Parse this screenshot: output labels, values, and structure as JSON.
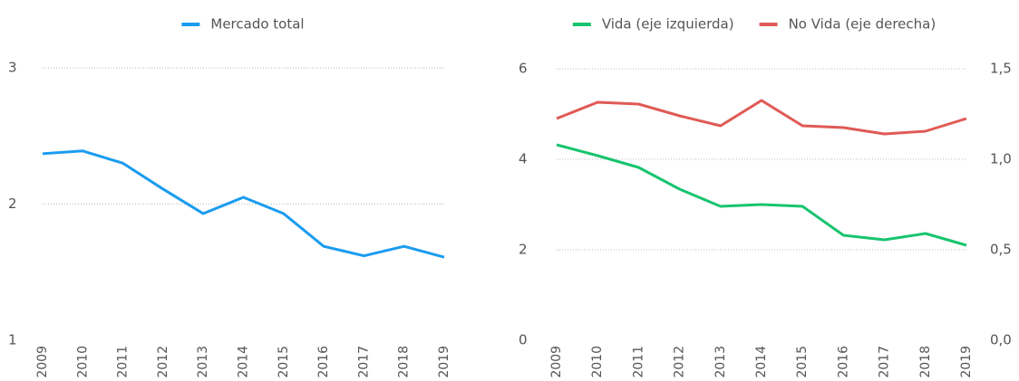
{
  "chart_data": [
    {
      "type": "line",
      "categories": [
        "2009",
        "2010",
        "2011",
        "2012",
        "2013",
        "2014",
        "2015",
        "2016",
        "2017",
        "2018",
        "2019"
      ],
      "series": [
        {
          "name": "Mercado total",
          "color": "#1a9cf0",
          "values": [
            2.37,
            2.39,
            2.3,
            2.11,
            1.93,
            2.05,
            1.93,
            1.69,
            1.62,
            1.69,
            1.61
          ]
        }
      ],
      "ylim": [
        1,
        3
      ],
      "yticks": [
        1,
        2,
        3
      ],
      "grid": true
    },
    {
      "type": "line",
      "categories": [
        "2009",
        "2010",
        "2011",
        "2012",
        "2013",
        "2014",
        "2015",
        "2016",
        "2017",
        "2018",
        "2019"
      ],
      "series": [
        {
          "name": "Vida (eje izquierda)",
          "color": "#17c46e",
          "values": [
            4.32,
            4.08,
            3.82,
            3.34,
            2.96,
            3.0,
            2.96,
            2.32,
            2.22,
            2.36,
            2.1
          ]
        },
        {
          "name": "No Vida (eje derecha)",
          "color": "#e05a55",
          "axis": "y2",
          "values": [
            1.225,
            1.315,
            1.305,
            1.24,
            1.185,
            1.325,
            1.185,
            1.175,
            1.14,
            1.155,
            1.225
          ]
        }
      ],
      "ylim": [
        0,
        6
      ],
      "yticks": [
        0,
        2,
        4,
        6
      ],
      "y2lim": [
        0,
        1.5
      ],
      "y2ticks": [
        {
          "value": 0,
          "label": "0,0"
        },
        {
          "value": 0.5,
          "label": "0,5"
        },
        {
          "value": 1.0,
          "label": "1,0"
        },
        {
          "value": 1.5,
          "label": "1,5"
        }
      ],
      "grid": true
    }
  ]
}
